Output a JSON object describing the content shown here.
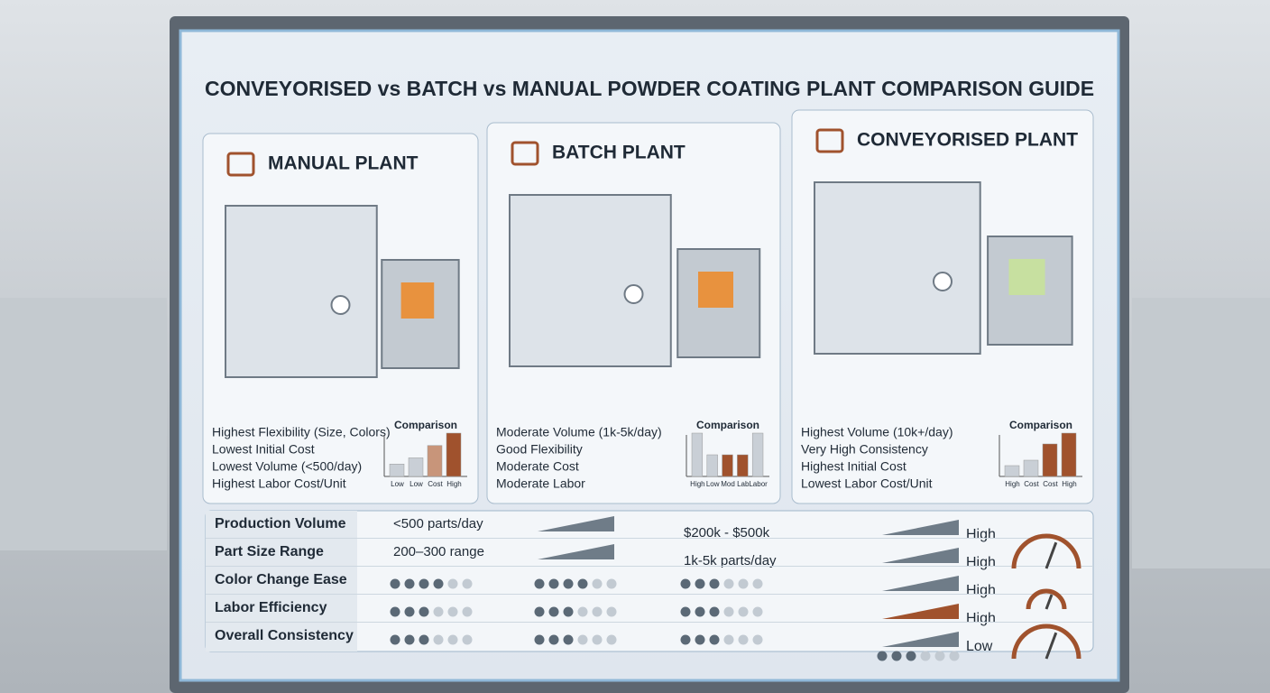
{
  "title": "CONVEYORISED vs BATCH vs MANUAL POWDER COATING PLANT COMPARISON GUIDE",
  "plants": [
    {
      "name": "MANUAL PLANT",
      "features": [
        "Highest Flexibility (Size, Colors)",
        "Lowest Initial Cost",
        "Lowest Volume (<500/day)",
        "Highest Labor Cost/Unit"
      ],
      "comparison": {
        "title": "Comparison",
        "categories": [
          "Low",
          "Low",
          "Cost",
          "High"
        ],
        "values": [
          2,
          3,
          5,
          7
        ],
        "colors": [
          "#c9cfd6",
          "#c9cfd6",
          "#c8957a",
          "#a0522d"
        ]
      }
    },
    {
      "name": "BATCH PLANT",
      "features": [
        "Moderate Volume (1k-5k/day)",
        "Good Flexibility",
        "Moderate Cost",
        "Moderate Labor"
      ],
      "comparison": {
        "title": "Comparison",
        "categories": [
          "High",
          "Low",
          "Mod",
          "Lab",
          "Labor"
        ],
        "values": [
          8,
          4,
          4,
          4,
          8
        ],
        "colors": [
          "#c9cfd6",
          "#c9cfd6",
          "#a0522d",
          "#a0522d",
          "#c9cfd6"
        ]
      }
    },
    {
      "name": "CONVEYORISED PLANT",
      "features": [
        "Highest Volume (10k+/day)",
        "Very High Consistency",
        "Highest Initial Cost",
        "Lowest Labor Cost/Unit"
      ],
      "comparison": {
        "title": "Comparison",
        "categories": [
          "High",
          "Cost",
          "Cost",
          "High"
        ],
        "values": [
          2,
          3,
          6,
          8
        ],
        "colors": [
          "#c9cfd6",
          "#c9cfd6",
          "#a0522d",
          "#a0522d"
        ]
      }
    }
  ],
  "table": {
    "rows": [
      {
        "label": "Production Volume",
        "manual": "<500 parts/day",
        "batch": "$200k - $500k",
        "level": "High"
      },
      {
        "label": "Part Size Range",
        "manual": "200–300 range",
        "batch": "1k-5k parts/day",
        "level": "High"
      },
      {
        "label": "Color Change Ease",
        "dots": [
          4,
          4,
          3
        ],
        "level": "High"
      },
      {
        "label": "Labor Efficiency",
        "dots": [
          3,
          3,
          3
        ],
        "level": "High"
      },
      {
        "label": "Overall Consistency",
        "dots": [
          3,
          3,
          3,
          3
        ],
        "level": "Low"
      }
    ]
  }
}
